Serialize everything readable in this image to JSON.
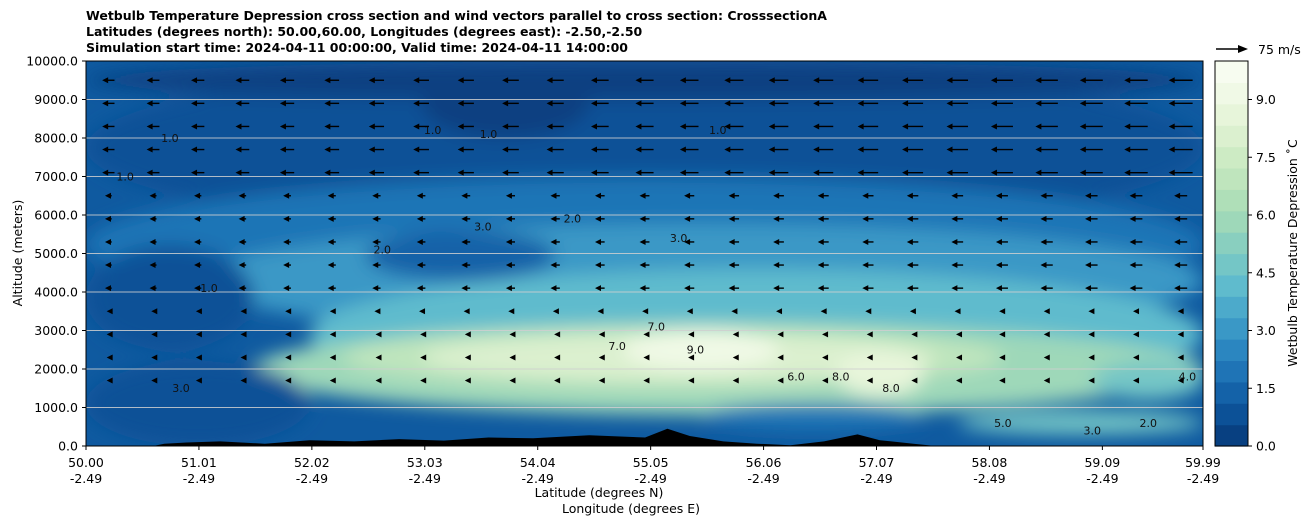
{
  "chart_data": {
    "type": "heatmap",
    "title_lines": [
      "Wetbulb Temperature Depression cross section and wind vectors parallel to cross section: CrosssectionA",
      "Latitudes (degrees north): 50.00,60.00, Longitudes (degrees east): -2.50,-2.50",
      "Simulation start time: 2024-04-11 00:00:00, Valid time: 2024-04-11 14:00:00"
    ],
    "ylabel": "Altitude (meters)",
    "xlabel_lat": "Latitude (degrees N)",
    "xlabel_lon": "Longitude (degrees E)",
    "xlim": [
      50.0,
      59.99
    ],
    "ylim": [
      0,
      10000
    ],
    "grid": "horizontal",
    "x_ticks_lat": [
      "50.00",
      "51.01",
      "52.02",
      "53.03",
      "54.04",
      "55.05",
      "56.06",
      "57.07",
      "58.08",
      "59.09",
      "59.99"
    ],
    "x_ticks_lon": [
      "-2.49",
      "-2.49",
      "-2.49",
      "-2.49",
      "-2.49",
      "-2.49",
      "-2.49",
      "-2.49",
      "-2.49",
      "-2.49",
      "-2.49"
    ],
    "y_ticks": [
      "0.0",
      "1000.0",
      "2000.0",
      "3000.0",
      "4000.0",
      "5000.0",
      "6000.0",
      "7000.0",
      "8000.0",
      "9000.0",
      "10000.0"
    ],
    "y_tick_values": [
      0,
      1000,
      2000,
      3000,
      4000,
      5000,
      6000,
      7000,
      8000,
      9000,
      10000
    ],
    "colorbar": {
      "label": "Wetbulb Temperature Depression ˚C",
      "range": [
        0,
        10
      ],
      "ticks": [
        "0.0",
        "1.5",
        "3.0",
        "4.5",
        "6.0",
        "7.5",
        "9.0"
      ],
      "tick_values": [
        0,
        1.5,
        3.0,
        4.5,
        6.0,
        7.5,
        9.0
      ],
      "colors": [
        "#084081",
        "#0c5197",
        "#1462a8",
        "#1f74b6",
        "#2b86c0",
        "#3a98c6",
        "#4caacb",
        "#5fbbcd",
        "#74c6c6",
        "#89cfbf",
        "#9ed8b9",
        "#afdfb8",
        "#bfe5bd",
        "#cdebc4",
        "#dbf0cf",
        "#e7f5da",
        "#f0f9e6",
        "#f7fcf0"
      ]
    },
    "quiver_key": {
      "label": "75 m/s",
      "speed": 75
    },
    "field_features": [
      {
        "name": "moist-low-level",
        "center": [
          50.5,
          400
        ],
        "value": 0.3
      },
      {
        "name": "dry-tongue",
        "center": [
          55.5,
          2300
        ],
        "value": 8.5
      },
      {
        "name": "dry-core-north",
        "center": [
          57.0,
          2000
        ],
        "value": 9.0
      },
      {
        "name": "upper-moist",
        "center": [
          53.5,
          8500
        ],
        "value": 0.4
      }
    ],
    "contour_levels": [
      1.0,
      2.0,
      3.0,
      4.0,
      5.0,
      6.0,
      7.0,
      8.0,
      9.0
    ],
    "contour_labels": [
      {
        "text": "1.0",
        "lat": 50.75,
        "alt": 7900
      },
      {
        "text": "1.0",
        "lat": 50.35,
        "alt": 6900
      },
      {
        "text": "1.0",
        "lat": 51.1,
        "alt": 4000
      },
      {
        "text": "1.0",
        "lat": 53.1,
        "alt": 8100
      },
      {
        "text": "1.0",
        "lat": 53.6,
        "alt": 8000
      },
      {
        "text": "1.0",
        "lat": 55.65,
        "alt": 8100
      },
      {
        "text": "2.0",
        "lat": 52.65,
        "alt": 5000
      },
      {
        "text": "2.0",
        "lat": 54.35,
        "alt": 5800
      },
      {
        "text": "3.0",
        "lat": 53.55,
        "alt": 5600
      },
      {
        "text": "3.0",
        "lat": 55.3,
        "alt": 5300
      },
      {
        "text": "3.0",
        "lat": 50.85,
        "alt": 1400
      },
      {
        "text": "4.0",
        "lat": 59.85,
        "alt": 1700
      },
      {
        "text": "6.0",
        "lat": 56.35,
        "alt": 1700
      },
      {
        "text": "7.0",
        "lat": 54.75,
        "alt": 2500
      },
      {
        "text": "7.0",
        "lat": 55.1,
        "alt": 3000
      },
      {
        "text": "8.0",
        "lat": 56.75,
        "alt": 1700
      },
      {
        "text": "8.0",
        "lat": 57.2,
        "alt": 1400
      },
      {
        "text": "9.0",
        "lat": 55.45,
        "alt": 2400
      },
      {
        "text": "5.0",
        "lat": 58.2,
        "alt": 500
      },
      {
        "text": "3.0",
        "lat": 59.0,
        "alt": 300
      },
      {
        "text": "2.0",
        "lat": 59.5,
        "alt": 500
      }
    ]
  }
}
